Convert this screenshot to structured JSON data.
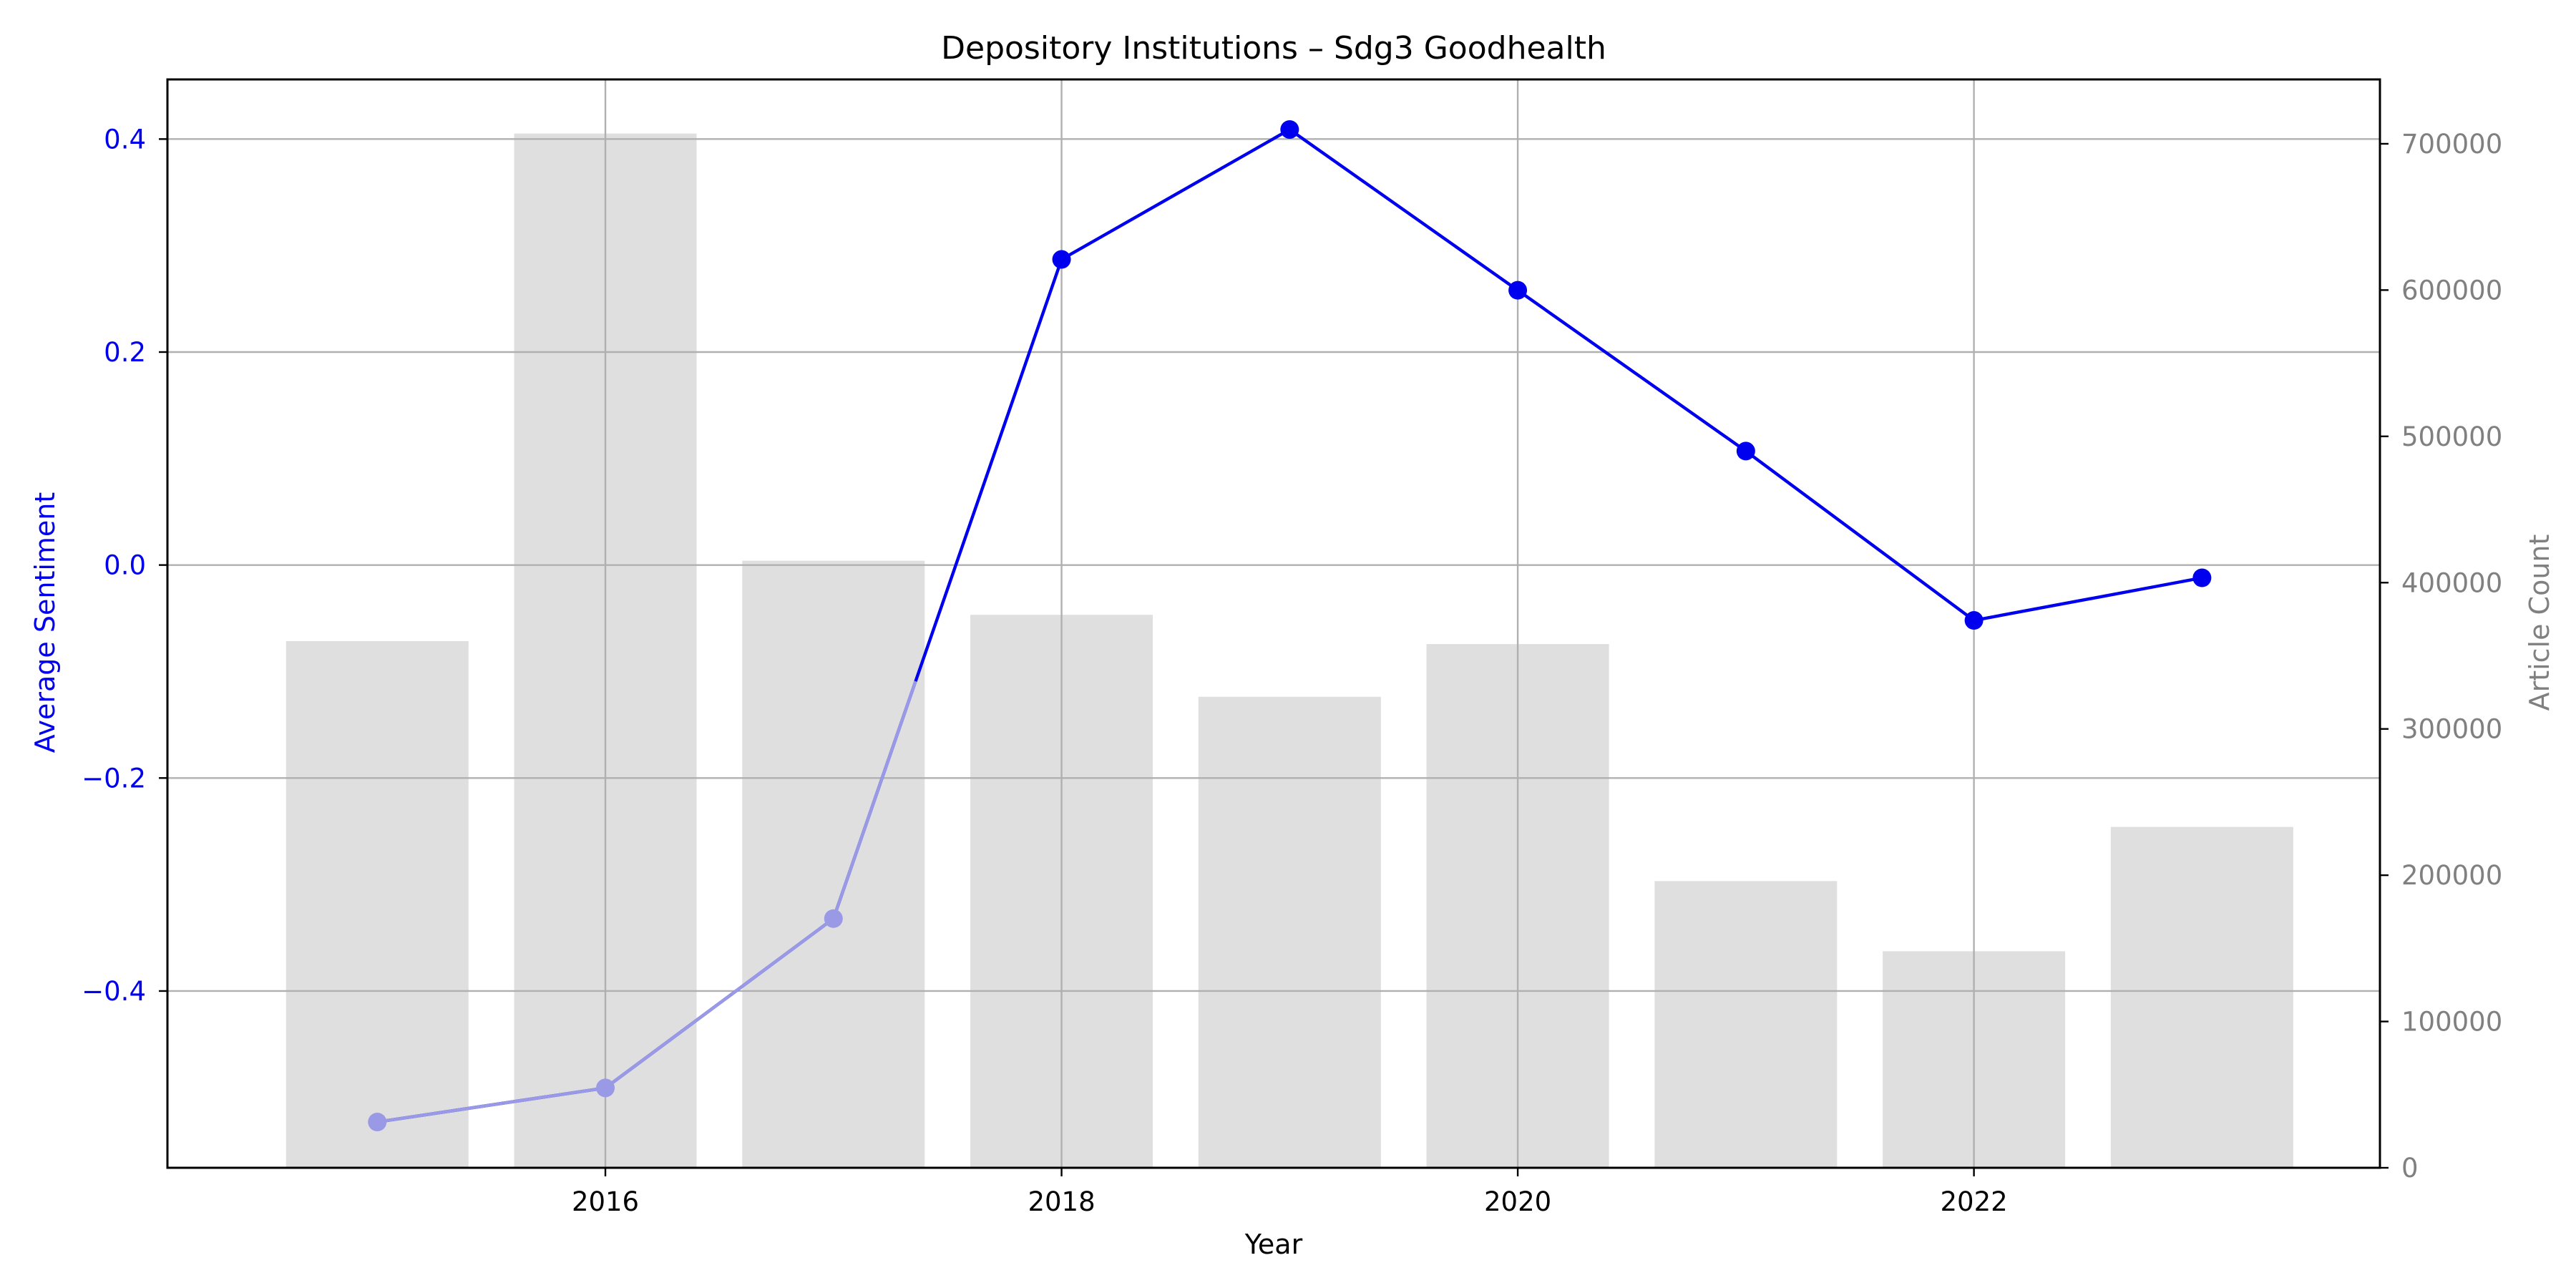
{
  "chart_data": {
    "type": "bar+line",
    "title": "Depository Institutions – Sdg3 Goodhealth",
    "xlabel": "Year",
    "ylabel_left": "Average Sentiment",
    "ylabel_right": "Article Count",
    "x": [
      2015,
      2016,
      2017,
      2018,
      2019,
      2020,
      2021,
      2022,
      2023
    ],
    "xlim": [
      2014.08,
      2023.78
    ],
    "x_ticks": [
      2016,
      2018,
      2020,
      2022
    ],
    "x_tick_labels": [
      "2016",
      "2018",
      "2020",
      "2022"
    ],
    "series": [
      {
        "name": "Article Count",
        "axis": "right",
        "kind": "bar",
        "color": "#dfdfdf",
        "values": [
          360000,
          707000,
          415000,
          378000,
          322000,
          358000,
          196000,
          148000,
          233000
        ]
      },
      {
        "name": "Average Sentiment",
        "axis": "left",
        "kind": "line",
        "color": "#0000ee",
        "faded_color": "#9999e6",
        "faded_points": [
          0,
          1,
          2
        ],
        "values": [
          -0.523,
          -0.491,
          -0.332,
          0.287,
          0.409,
          0.258,
          0.107,
          -0.052,
          -0.012
        ]
      }
    ],
    "ylim_left": [
      -0.566,
      0.456
    ],
    "ylim_right": [
      0,
      744000
    ],
    "y_left_ticks": [
      -0.4,
      -0.2,
      0.0,
      0.2,
      0.4
    ],
    "y_left_tick_labels": [
      "−0.4",
      "−0.2",
      "0.0",
      "0.2",
      "0.4"
    ],
    "y_right_ticks": [
      0,
      100000,
      200000,
      300000,
      400000,
      500000,
      600000,
      700000
    ],
    "y_right_tick_labels": [
      "0",
      "100000",
      "200000",
      "300000",
      "400000",
      "500000",
      "600000",
      "700000"
    ],
    "grid": true,
    "colors": {
      "left_axis": "#0000ee",
      "right_axis": "#808080",
      "grid": "#b0b0b0",
      "spine": "#000000"
    }
  }
}
